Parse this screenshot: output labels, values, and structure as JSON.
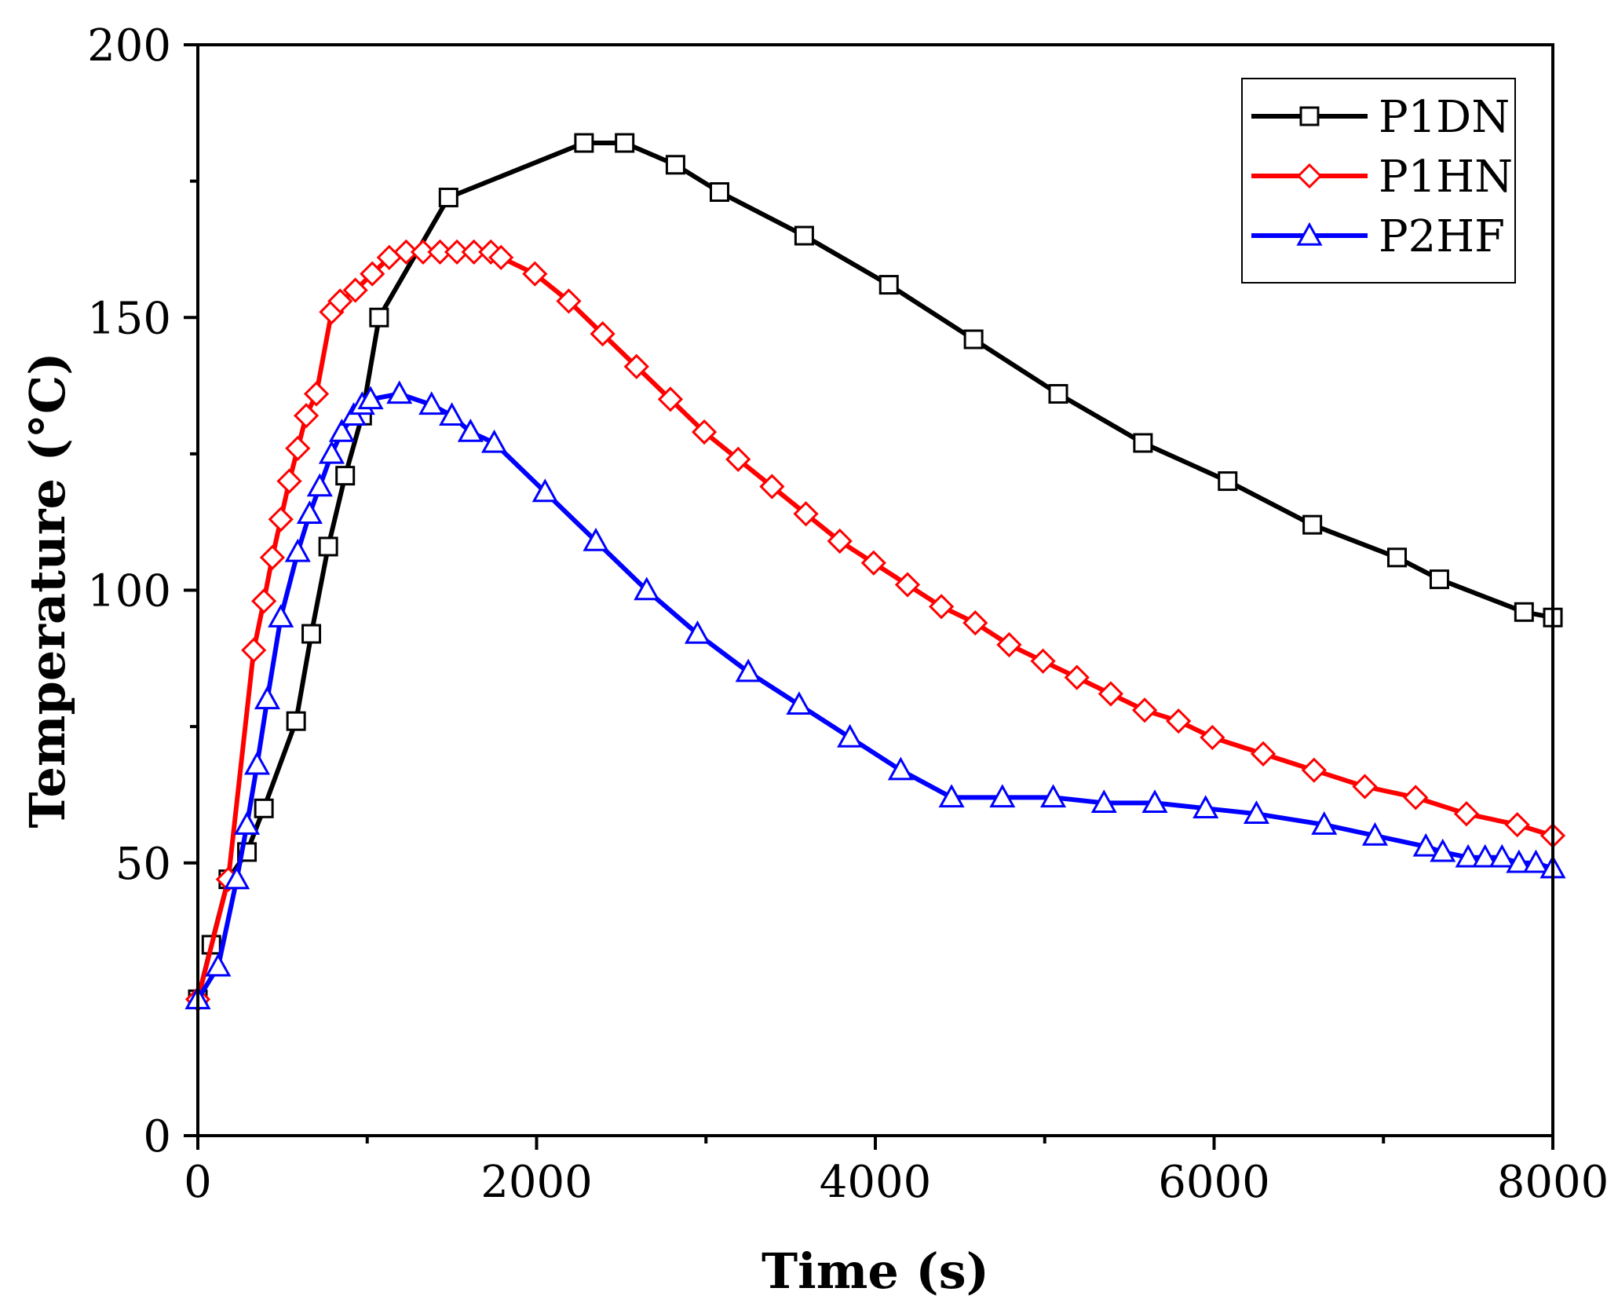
{
  "chart_data": {
    "type": "line",
    "xlabel": "Time (s)",
    "ylabel": "Temperature (°C)",
    "xlim": [
      0,
      8000
    ],
    "ylim": [
      0,
      200
    ],
    "xticks": [
      0,
      2000,
      4000,
      6000,
      8000
    ],
    "yticks": [
      0,
      50,
      100,
      150,
      200
    ],
    "x_minor_step": 1000,
    "y_minor_step": 25,
    "legend_position": "top-right",
    "series": [
      {
        "name": "P1DN",
        "color": "#000000",
        "marker": "square",
        "x": [
          0,
          80,
          180,
          290,
          390,
          580,
          670,
          770,
          870,
          970,
          1070,
          1480,
          2280,
          2520,
          2820,
          3080,
          3580,
          4080,
          4580,
          5080,
          5580,
          6080,
          6580,
          7080,
          7330,
          7830,
          8000
        ],
        "y": [
          25,
          35,
          47,
          52,
          60,
          76,
          92,
          108,
          121,
          132,
          150,
          172,
          182,
          182,
          178,
          173,
          165,
          156,
          146,
          136,
          127,
          120,
          112,
          106,
          102,
          96,
          95
        ]
      },
      {
        "name": "P1HN",
        "color": "#ff0000",
        "marker": "diamond",
        "x": [
          0,
          180,
          330,
          390,
          440,
          490,
          540,
          590,
          640,
          700,
          790,
          840,
          930,
          1030,
          1130,
          1230,
          1330,
          1430,
          1530,
          1630,
          1730,
          1790,
          1990,
          2190,
          2390,
          2590,
          2790,
          2990,
          3190,
          3390,
          3590,
          3790,
          3990,
          4190,
          4390,
          4590,
          4790,
          4990,
          5190,
          5390,
          5590,
          5790,
          5990,
          6290,
          6590,
          6890,
          7190,
          7490,
          7790,
          8000
        ],
        "y": [
          25,
          47,
          89,
          98,
          106,
          113,
          120,
          126,
          132,
          136,
          151,
          153,
          155,
          158,
          161,
          162,
          162,
          162,
          162,
          162,
          162,
          161,
          158,
          153,
          147,
          141,
          135,
          129,
          124,
          119,
          114,
          109,
          105,
          101,
          97,
          94,
          90,
          87,
          84,
          81,
          78,
          76,
          73,
          70,
          67,
          64,
          62,
          59,
          57,
          55
        ]
      },
      {
        "name": "P2HF",
        "color": "#0000ff",
        "marker": "triangle",
        "x": [
          0,
          120,
          230,
          290,
          350,
          410,
          490,
          590,
          660,
          720,
          790,
          850,
          920,
          970,
          1020,
          1190,
          1380,
          1500,
          1610,
          1750,
          2050,
          2350,
          2650,
          2950,
          3250,
          3550,
          3850,
          4150,
          4450,
          4750,
          5050,
          5350,
          5650,
          5950,
          6250,
          6650,
          6950,
          7250,
          7350,
          7500,
          7600,
          7700,
          7800,
          7900,
          8000
        ],
        "y": [
          25,
          31,
          47,
          57,
          68,
          80,
          95,
          107,
          114,
          119,
          125,
          129,
          132,
          134,
          135,
          136,
          134,
          132,
          129,
          127,
          118,
          109,
          100,
          92,
          85,
          79,
          73,
          67,
          62,
          62,
          62,
          61,
          61,
          60,
          59,
          57,
          55,
          53,
          52,
          51,
          51,
          51,
          50,
          50,
          49
        ]
      }
    ]
  }
}
